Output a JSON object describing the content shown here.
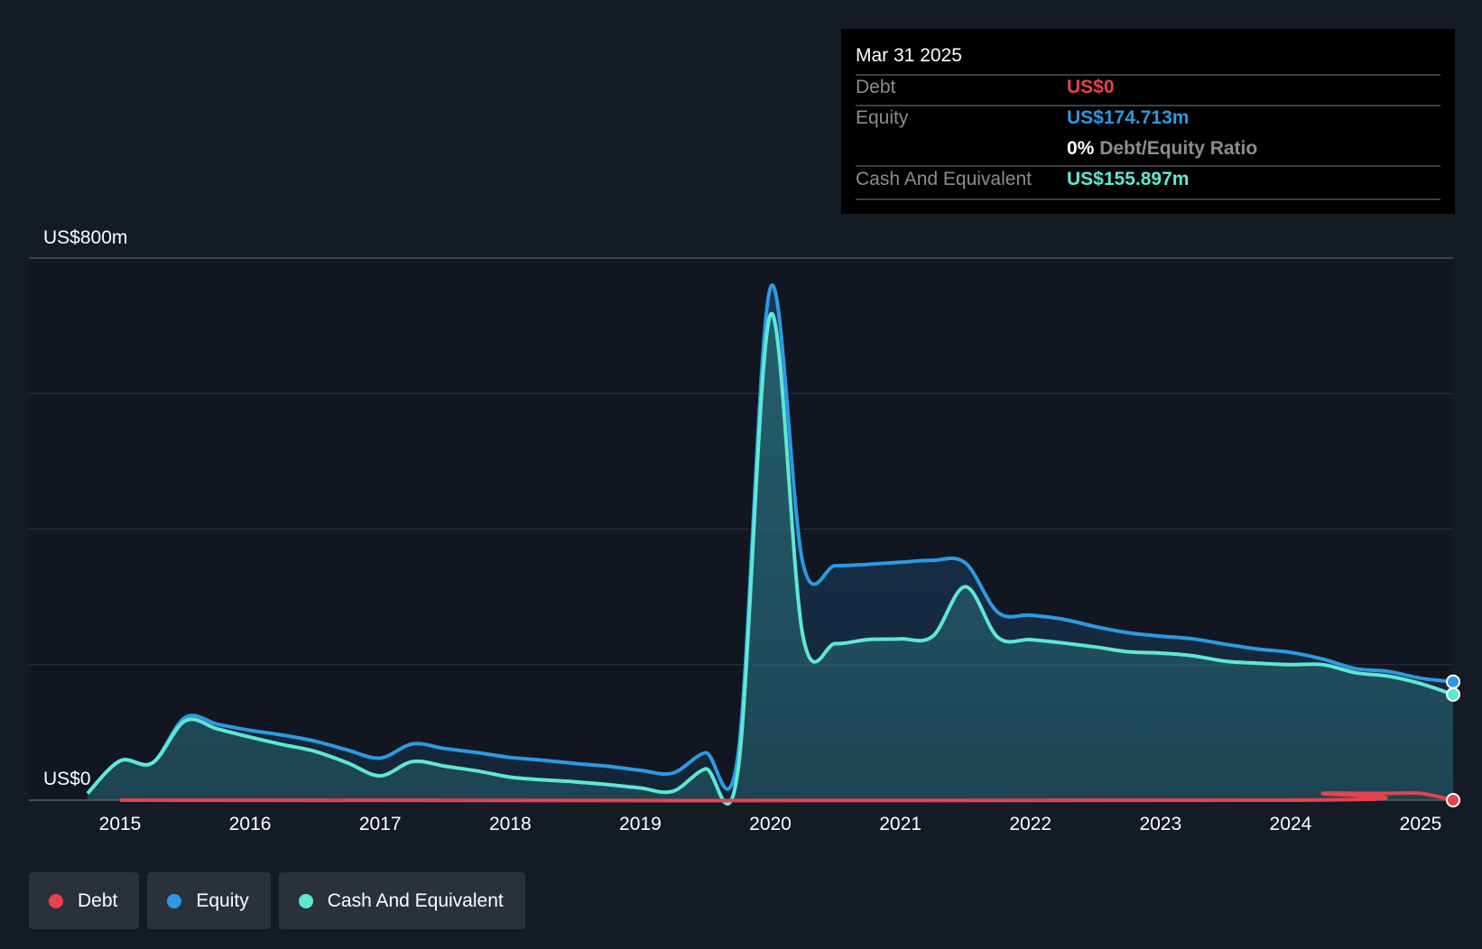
{
  "tooltip": {
    "date": "Mar 31 2025",
    "rows": [
      {
        "label": "Debt",
        "value": "US$0",
        "color": "#e5434e"
      },
      {
        "label": "Equity",
        "value": "US$174.713m",
        "color": "#2c9ae2"
      },
      {
        "label": "Cash And Equivalent",
        "value": "US$155.897m",
        "color": "#5ee8d4"
      }
    ],
    "ratio_value": "0%",
    "ratio_label": "Debt/Equity Ratio"
  },
  "legend": [
    {
      "label": "Debt",
      "color": "#e5434e"
    },
    {
      "label": "Equity",
      "color": "#2c9ae2"
    },
    {
      "label": "Cash And Equivalent",
      "color": "#5ee8d4"
    }
  ],
  "chart_data": {
    "type": "area",
    "y_top_label": "US$800m",
    "y_bottom_label": "US$0",
    "ylim": [
      0,
      800
    ],
    "xlim": [
      2014.75,
      2025.25
    ],
    "x_ticks": [
      2015,
      2016,
      2017,
      2018,
      2019,
      2020,
      2021,
      2022,
      2023,
      2024,
      2025
    ],
    "grid": true,
    "series": [
      {
        "name": "Equity",
        "color": "#2c9ae2",
        "points": [
          [
            2014.75,
            10
          ],
          [
            2015.0,
            58
          ],
          [
            2015.25,
            55
          ],
          [
            2015.5,
            122
          ],
          [
            2015.75,
            112
          ],
          [
            2016.0,
            103
          ],
          [
            2016.25,
            96
          ],
          [
            2016.5,
            87
          ],
          [
            2016.75,
            74
          ],
          [
            2017.0,
            62
          ],
          [
            2017.25,
            83
          ],
          [
            2017.5,
            76
          ],
          [
            2017.75,
            70
          ],
          [
            2018.0,
            63
          ],
          [
            2018.25,
            59
          ],
          [
            2018.5,
            54
          ],
          [
            2018.75,
            50
          ],
          [
            2019.0,
            44
          ],
          [
            2019.25,
            40
          ],
          [
            2019.5,
            70
          ],
          [
            2019.75,
            65
          ],
          [
            2020.0,
            756
          ],
          [
            2020.25,
            350
          ],
          [
            2020.5,
            346
          ],
          [
            2020.75,
            348
          ],
          [
            2021.0,
            351
          ],
          [
            2021.25,
            354
          ],
          [
            2021.5,
            350
          ],
          [
            2021.75,
            277
          ],
          [
            2022.0,
            273
          ],
          [
            2022.25,
            267
          ],
          [
            2022.5,
            256
          ],
          [
            2022.75,
            247
          ],
          [
            2023.0,
            242
          ],
          [
            2023.25,
            238
          ],
          [
            2023.5,
            230
          ],
          [
            2023.75,
            223
          ],
          [
            2024.0,
            218
          ],
          [
            2024.25,
            208
          ],
          [
            2024.5,
            194
          ],
          [
            2024.75,
            190
          ],
          [
            2025.0,
            180
          ],
          [
            2025.25,
            174.7
          ]
        ]
      },
      {
        "name": "Cash And Equivalent",
        "color": "#5ee8d4",
        "points": [
          [
            2014.75,
            10
          ],
          [
            2015.0,
            58
          ],
          [
            2015.25,
            55
          ],
          [
            2015.5,
            117
          ],
          [
            2015.75,
            105
          ],
          [
            2016.0,
            93
          ],
          [
            2016.25,
            82
          ],
          [
            2016.5,
            72
          ],
          [
            2016.75,
            55
          ],
          [
            2017.0,
            36
          ],
          [
            2017.25,
            57
          ],
          [
            2017.5,
            50
          ],
          [
            2017.75,
            43
          ],
          [
            2018.0,
            34
          ],
          [
            2018.25,
            30
          ],
          [
            2018.5,
            27
          ],
          [
            2018.75,
            23
          ],
          [
            2019.0,
            18
          ],
          [
            2019.25,
            13
          ],
          [
            2019.5,
            46
          ],
          [
            2019.75,
            42
          ],
          [
            2020.0,
            716
          ],
          [
            2020.25,
            243
          ],
          [
            2020.5,
            231
          ],
          [
            2020.75,
            237
          ],
          [
            2021.0,
            238
          ],
          [
            2021.25,
            242
          ],
          [
            2021.5,
            315
          ],
          [
            2021.75,
            240
          ],
          [
            2022.0,
            237
          ],
          [
            2022.25,
            232
          ],
          [
            2022.5,
            226
          ],
          [
            2022.75,
            219
          ],
          [
            2023.0,
            217
          ],
          [
            2023.25,
            213
          ],
          [
            2023.5,
            205
          ],
          [
            2023.75,
            202
          ],
          [
            2024.0,
            200
          ],
          [
            2024.25,
            200
          ],
          [
            2024.5,
            188
          ],
          [
            2024.75,
            183
          ],
          [
            2025.0,
            172
          ],
          [
            2025.25,
            155.9
          ]
        ]
      },
      {
        "name": "Debt",
        "color": "#e5434e",
        "points": [
          [
            2015.0,
            0
          ],
          [
            2024.0,
            0
          ],
          [
            2024.25,
            10
          ],
          [
            2024.5,
            10
          ],
          [
            2024.75,
            10
          ],
          [
            2025.0,
            10
          ],
          [
            2025.25,
            0
          ]
        ]
      }
    ]
  }
}
